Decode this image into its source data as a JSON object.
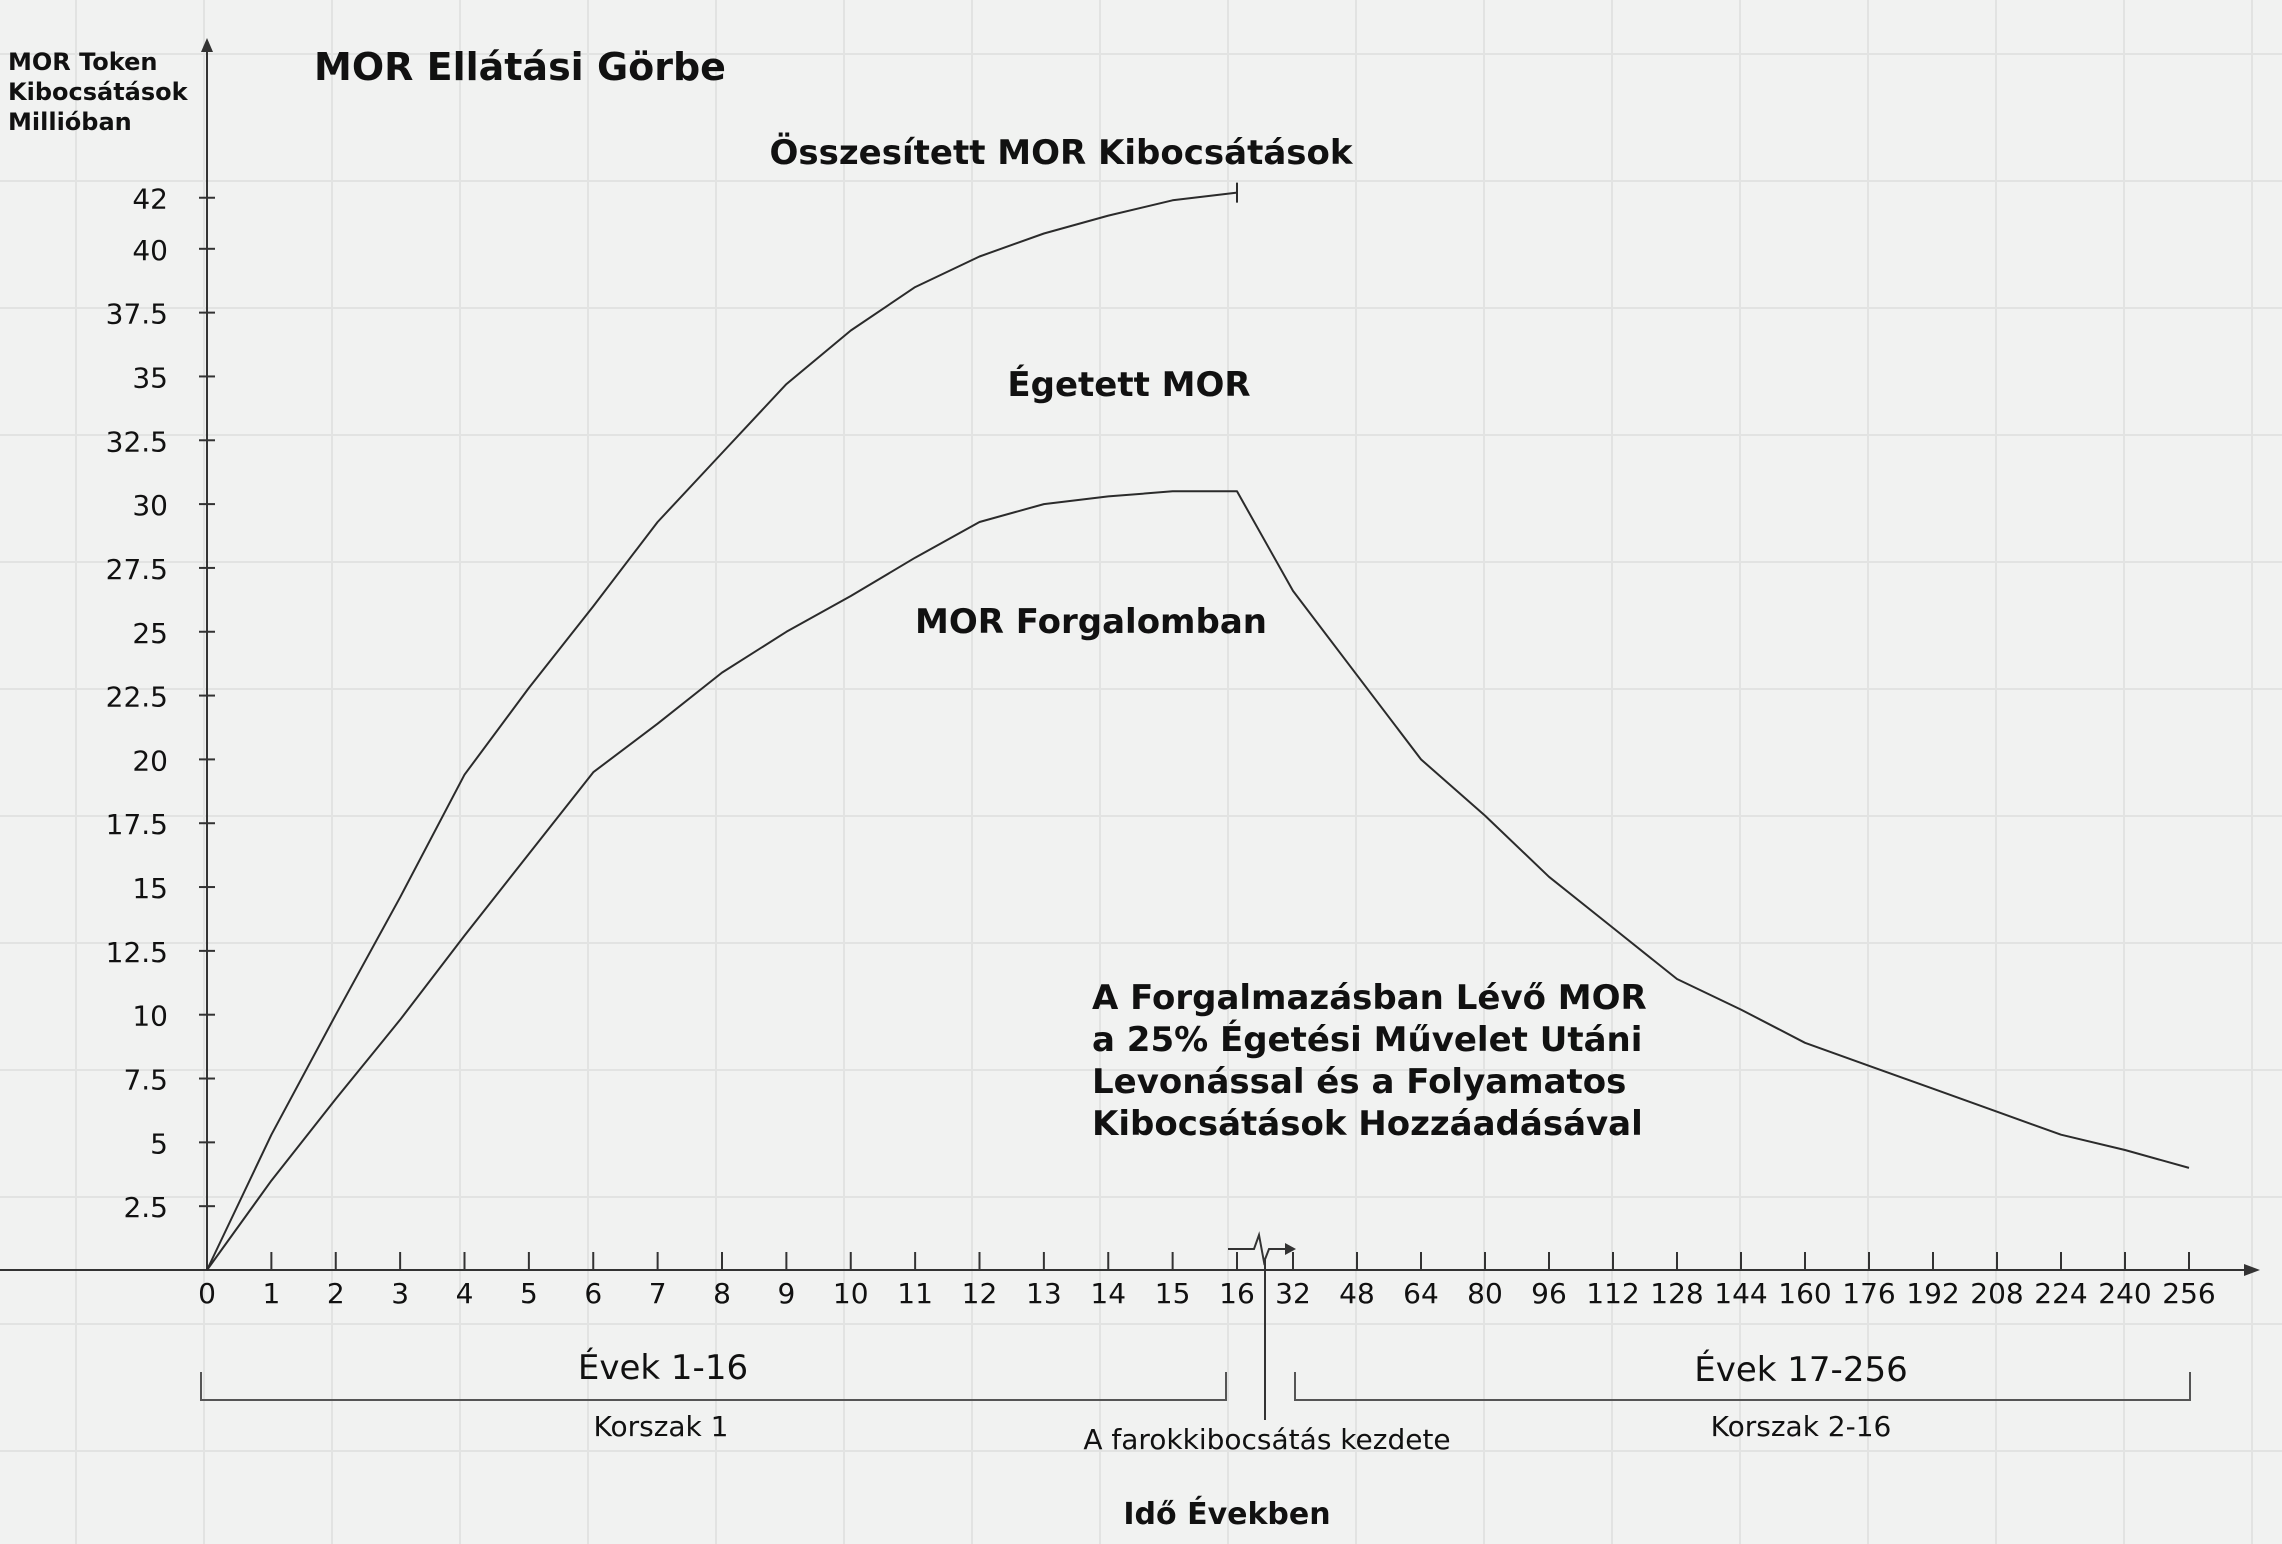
{
  "chart_data": {
    "type": "line",
    "title": "MOR Ellátási Görbe",
    "ylabel_lines": [
      "MOR Token",
      "Kibocsátások",
      "Millióban"
    ],
    "xlabel": "Idő Években",
    "yticks": [
      "2.5",
      "5",
      "7.5",
      "10",
      "12.5",
      "15",
      "17.5",
      "20",
      "22.5",
      "25",
      "27.5",
      "30",
      "32.5",
      "35",
      "37.5",
      "40",
      "42"
    ],
    "xticks": [
      "0",
      "1",
      "2",
      "3",
      "4",
      "5",
      "6",
      "7",
      "8",
      "9",
      "10",
      "11",
      "12",
      "13",
      "14",
      "15",
      "16",
      "32",
      "48",
      "64",
      "80",
      "96",
      "112",
      "128",
      "144",
      "160",
      "176",
      "192",
      "208",
      "224",
      "240",
      "256"
    ],
    "ylim": [
      0,
      42
    ],
    "series": [
      {
        "name": "Összesített MOR Kibocsátások",
        "points": [
          [
            0,
            0
          ],
          [
            1,
            5.3
          ],
          [
            2,
            10
          ],
          [
            3,
            14.6
          ],
          [
            4,
            19.4
          ],
          [
            5,
            22.8
          ],
          [
            6,
            26
          ],
          [
            7,
            29.3
          ],
          [
            8,
            32
          ],
          [
            9,
            34.7
          ],
          [
            10,
            36.8
          ],
          [
            11,
            38.5
          ],
          [
            12,
            39.7
          ],
          [
            13,
            40.6
          ],
          [
            14,
            41.3
          ],
          [
            15,
            41.9
          ],
          [
            16,
            42.2
          ]
        ]
      },
      {
        "name": "MOR Forgalomban",
        "points": [
          [
            0,
            0
          ],
          [
            1,
            3.5
          ],
          [
            2,
            6.7
          ],
          [
            3,
            9.8
          ],
          [
            4,
            13.1
          ],
          [
            5,
            16.3
          ],
          [
            6,
            19.5
          ],
          [
            7,
            21.4
          ],
          [
            8,
            23.4
          ],
          [
            9,
            25
          ],
          [
            10,
            26.4
          ],
          [
            11,
            27.9
          ],
          [
            12,
            29.3
          ],
          [
            13,
            30
          ],
          [
            14,
            30.3
          ],
          [
            15,
            30.5
          ],
          [
            16,
            30.5
          ],
          [
            32,
            26.6
          ],
          [
            48,
            23.3
          ],
          [
            64,
            20
          ],
          [
            80,
            17.8
          ],
          [
            96,
            15.4
          ],
          [
            112,
            13.4
          ],
          [
            128,
            11.4
          ],
          [
            144,
            10.2
          ],
          [
            160,
            8.9
          ],
          [
            176,
            8
          ],
          [
            192,
            7.1
          ],
          [
            208,
            6.2
          ],
          [
            224,
            5.3
          ],
          [
            240,
            4.7
          ],
          [
            256,
            4
          ]
        ]
      }
    ],
    "labels": {
      "cumulative": "Összesített MOR Kibocsátások",
      "burned": "Égetett MOR",
      "circulating": "MOR Forgalomban",
      "note_lines": [
        "A Forgalmazásban Lévő MOR",
        "a 25% Égetési Művelet Utáni",
        "Levonással és a Folyamatos",
        "Kibocsátások Hozzáadásával"
      ],
      "period1_title": "Évek 1-16",
      "period1_sub": "Korszak 1",
      "period2_title": "Évek 17-256",
      "period2_sub": "Korszak 2-16",
      "tail_start": "A farokkibocsátás kezdete"
    },
    "grid": true
  },
  "colors": {
    "background": "#f1f2f1",
    "grid": "#e2e3e2",
    "line": "#2b2b2b",
    "text": "#111111"
  }
}
